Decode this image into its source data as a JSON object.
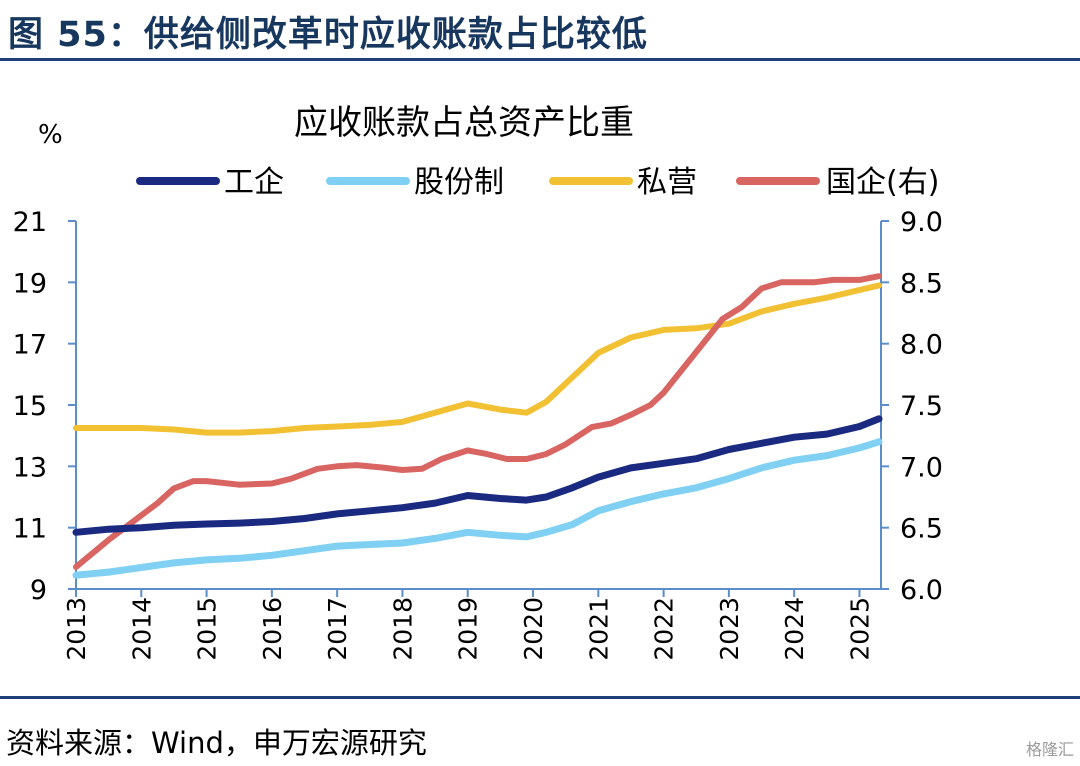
{
  "figure": {
    "title": "图 55：供给侧改革时应收账款占比较低",
    "source": "资料来源：Wind，申万宏源研究",
    "watermark": "格隆汇"
  },
  "chart_data": {
    "type": "line",
    "title": "应收账款占总资产比重",
    "left_axis_unit": "%",
    "left_axis": {
      "range": [
        9,
        21
      ],
      "ticks": [
        "9",
        "11",
        "13",
        "15",
        "17",
        "19",
        "21"
      ]
    },
    "right_axis": {
      "range": [
        6.0,
        9.0
      ],
      "ticks": [
        "6.0",
        "6.5",
        "7.0",
        "7.5",
        "8.0",
        "8.5",
        "9.0"
      ]
    },
    "x_axis": {
      "range": [
        2013,
        2025.33
      ],
      "ticks": [
        "2013",
        "2014",
        "2015",
        "2016",
        "2017",
        "2018",
        "2019",
        "2020",
        "2021",
        "2022",
        "2023",
        "2024",
        "2025"
      ]
    },
    "legend_placement": "top",
    "series": [
      {
        "name": "工企",
        "color": "#1A2A80",
        "axis": "left",
        "x": [
          2013.0,
          2013.5,
          2014.0,
          2014.5,
          2015.0,
          2015.5,
          2016.0,
          2016.5,
          2017.0,
          2017.5,
          2018.0,
          2018.5,
          2019.0,
          2019.5,
          2019.9,
          2020.2,
          2020.6,
          2021.0,
          2021.5,
          2022.0,
          2022.5,
          2023.0,
          2023.5,
          2024.0,
          2024.5,
          2025.0,
          2025.3
        ],
        "y": [
          10.85,
          10.95,
          11.0,
          11.08,
          11.12,
          11.15,
          11.2,
          11.3,
          11.45,
          11.55,
          11.65,
          11.8,
          12.05,
          11.95,
          11.9,
          12.0,
          12.3,
          12.65,
          12.95,
          13.1,
          13.25,
          13.55,
          13.75,
          13.95,
          14.05,
          14.3,
          14.55
        ]
      },
      {
        "name": "股份制",
        "color": "#7FD0F2",
        "axis": "left",
        "x": [
          2013.0,
          2013.5,
          2014.0,
          2014.5,
          2015.0,
          2015.5,
          2016.0,
          2016.5,
          2017.0,
          2017.5,
          2018.0,
          2018.5,
          2019.0,
          2019.5,
          2019.9,
          2020.2,
          2020.6,
          2021.0,
          2021.5,
          2022.0,
          2022.5,
          2023.0,
          2023.5,
          2024.0,
          2024.5,
          2025.0,
          2025.3
        ],
        "y": [
          9.45,
          9.55,
          9.7,
          9.85,
          9.95,
          10.0,
          10.1,
          10.25,
          10.4,
          10.45,
          10.5,
          10.65,
          10.85,
          10.75,
          10.7,
          10.85,
          11.1,
          11.55,
          11.85,
          12.1,
          12.3,
          12.6,
          12.95,
          13.2,
          13.35,
          13.6,
          13.8
        ]
      },
      {
        "name": "私营",
        "color": "#F2C033",
        "axis": "left",
        "x": [
          2013.0,
          2013.5,
          2014.0,
          2014.5,
          2015.0,
          2015.5,
          2016.0,
          2016.5,
          2017.0,
          2017.5,
          2018.0,
          2018.5,
          2019.0,
          2019.5,
          2019.9,
          2020.2,
          2020.6,
          2021.0,
          2021.5,
          2022.0,
          2022.5,
          2023.0,
          2023.5,
          2024.0,
          2024.5,
          2025.0,
          2025.3
        ],
        "y": [
          14.25,
          14.25,
          14.25,
          14.2,
          14.1,
          14.1,
          14.15,
          14.25,
          14.3,
          14.35,
          14.45,
          14.75,
          15.05,
          14.85,
          14.75,
          15.1,
          15.9,
          16.7,
          17.2,
          17.45,
          17.5,
          17.65,
          18.05,
          18.3,
          18.5,
          18.75,
          18.9
        ]
      },
      {
        "name": "国企(右)",
        "color": "#D86562",
        "axis": "right",
        "x": [
          2013.0,
          2013.5,
          2014.0,
          2014.25,
          2014.5,
          2014.8,
          2015.0,
          2015.5,
          2016.0,
          2016.3,
          2016.7,
          2017.0,
          2017.3,
          2017.7,
          2018.0,
          2018.3,
          2018.6,
          2019.0,
          2019.3,
          2019.6,
          2019.9,
          2020.2,
          2020.5,
          2020.9,
          2021.2,
          2021.5,
          2021.8,
          2022.0,
          2022.3,
          2022.6,
          2022.9,
          2023.2,
          2023.5,
          2023.8,
          2024.0,
          2024.3,
          2024.6,
          2025.0,
          2025.3
        ],
        "y": [
          6.18,
          6.4,
          6.6,
          6.7,
          6.82,
          6.88,
          6.88,
          6.85,
          6.86,
          6.9,
          6.98,
          7.0,
          7.01,
          6.99,
          6.97,
          6.98,
          7.06,
          7.13,
          7.1,
          7.06,
          7.06,
          7.1,
          7.18,
          7.32,
          7.35,
          7.42,
          7.5,
          7.6,
          7.8,
          8.0,
          8.2,
          8.3,
          8.45,
          8.5,
          8.5,
          8.5,
          8.52,
          8.52,
          8.55
        ]
      }
    ]
  }
}
